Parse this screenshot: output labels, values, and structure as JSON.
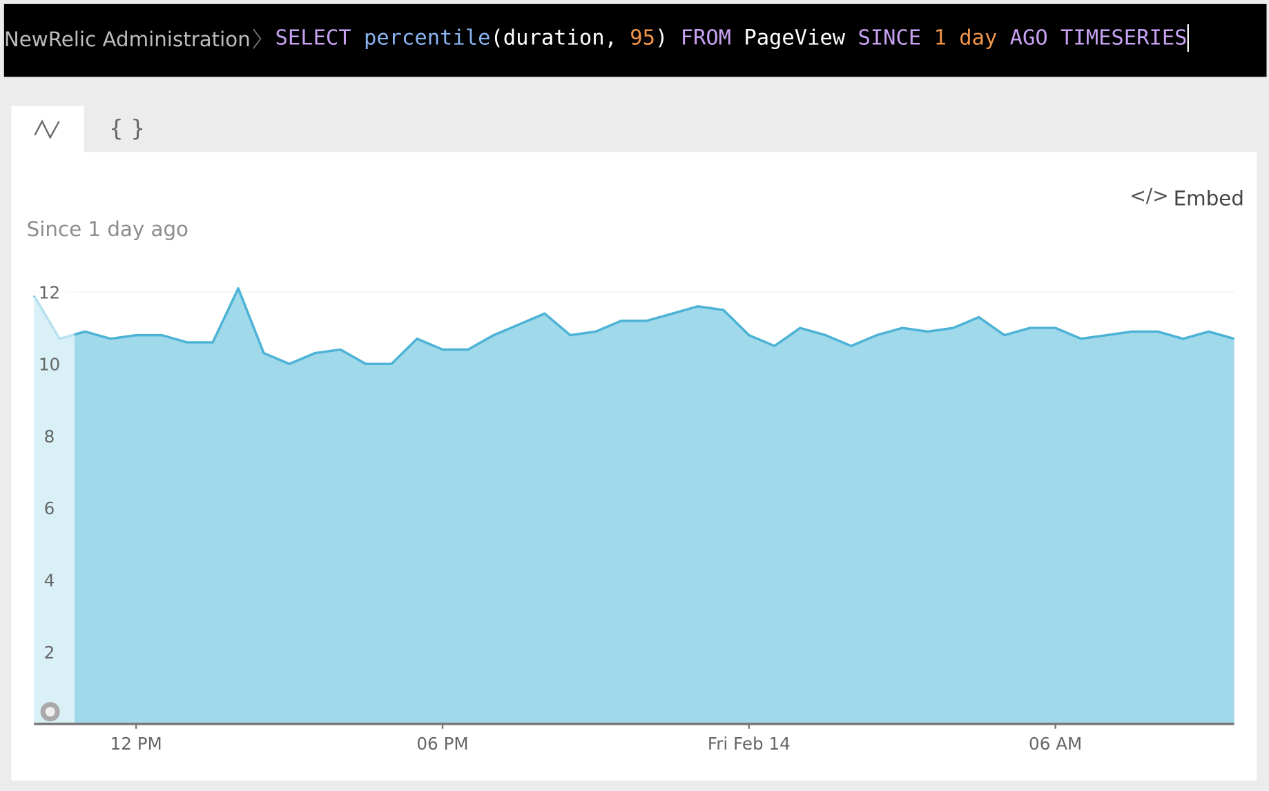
{
  "header": {
    "breadcrumb": "NewRelic Administration",
    "query": [
      {
        "text": "SELECT",
        "color": "#c8a2f2"
      },
      {
        "text": "percentile",
        "color": "#8ab4f0"
      },
      {
        "text": "(duration,",
        "color": "#ffffff"
      },
      {
        "text": "95",
        "color": "#f0954a"
      },
      {
        "text": ")",
        "color": "#ffffff"
      },
      {
        "text": "FROM",
        "color": "#c8a2f2"
      },
      {
        "text": "PageView",
        "color": "#ffffff"
      },
      {
        "text": "SINCE",
        "color": "#c8a2f2"
      },
      {
        "text": "1",
        "color": "#f0954a"
      },
      {
        "text": "day",
        "color": "#f0954a"
      },
      {
        "text": "AGO",
        "color": "#c8a2f2"
      },
      {
        "text": "TIMESERIES",
        "color": "#c8a2f2"
      }
    ]
  },
  "embed": "Embed",
  "chart_data": {
    "type": "area",
    "subtitle": "Since 1 day ago",
    "x": [
      10,
      10.5,
      11,
      11.5,
      12,
      12.5,
      13,
      13.5,
      14,
      14.5,
      15,
      15.5,
      16,
      16.5,
      17,
      17.5,
      18,
      18.5,
      19,
      19.5,
      20,
      20.5,
      21,
      21.5,
      22,
      22.5,
      23,
      23.5,
      24,
      24.5,
      25,
      25.5,
      26,
      26.5,
      27,
      27.5,
      28,
      28.5,
      29,
      29.5,
      30,
      30.5,
      31,
      31.5,
      32,
      32.5,
      33,
      33.5
    ],
    "values": [
      11.9,
      10.7,
      10.9,
      10.7,
      10.8,
      10.8,
      10.6,
      10.6,
      12.1,
      10.3,
      10.0,
      10.3,
      10.4,
      10.0,
      10.0,
      10.7,
      10.4,
      10.4,
      10.8,
      11.1,
      11.4,
      10.8,
      10.9,
      11.2,
      11.2,
      11.4,
      11.6,
      11.5,
      10.8,
      10.5,
      11.0,
      10.8,
      10.5,
      10.8,
      11.0,
      10.9,
      11.0,
      11.3,
      10.8,
      11.0,
      11.0,
      10.7,
      10.8,
      10.9,
      10.9,
      10.7,
      10.9,
      10.7
    ],
    "color": "#4db3d6",
    "fill": "#a0d9ea",
    "xlim": [
      10,
      33.5
    ],
    "ylim": [
      0,
      12.5
    ],
    "xticks": [
      {
        "value": 12,
        "label": "12 PM"
      },
      {
        "value": 18,
        "label": "06 PM"
      },
      {
        "value": 24,
        "label": "Fri Feb 14"
      },
      {
        "value": 30,
        "label": "06 AM"
      }
    ],
    "yticks": [
      2,
      4,
      6,
      8,
      10,
      12
    ],
    "grid": true
  }
}
